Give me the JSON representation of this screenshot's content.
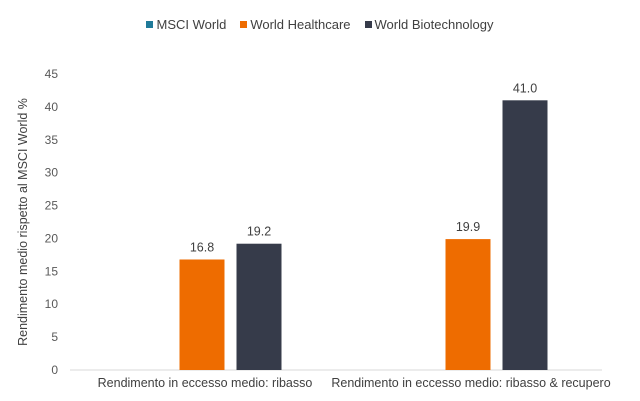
{
  "chart_data": {
    "type": "bar",
    "categories": [
      "Rendimento in eccesso medio: ribasso",
      "Rendimento in eccesso medio: ribasso & recupero"
    ],
    "series": [
      {
        "name": "MSCI World",
        "color": "#1f7a99",
        "values": [
          0,
          0
        ],
        "labels": [
          "",
          ""
        ]
      },
      {
        "name": "World Healthcare",
        "color": "#ee6c00",
        "values": [
          16.8,
          19.9
        ],
        "labels": [
          "16.8",
          "19.9"
        ]
      },
      {
        "name": "World Biotechnology",
        "color": "#363b4a",
        "values": [
          19.2,
          41.0
        ],
        "labels": [
          "19.2",
          "41.0"
        ]
      }
    ],
    "title": "",
    "xlabel": "",
    "ylabel": "Rendimento medio rispetto al MSCI World %",
    "ylim": [
      0,
      45
    ],
    "yticks": [
      "0",
      "5",
      "10",
      "15",
      "20",
      "25",
      "30",
      "35",
      "40",
      "45"
    ],
    "grid": false,
    "legend_position": "top"
  }
}
